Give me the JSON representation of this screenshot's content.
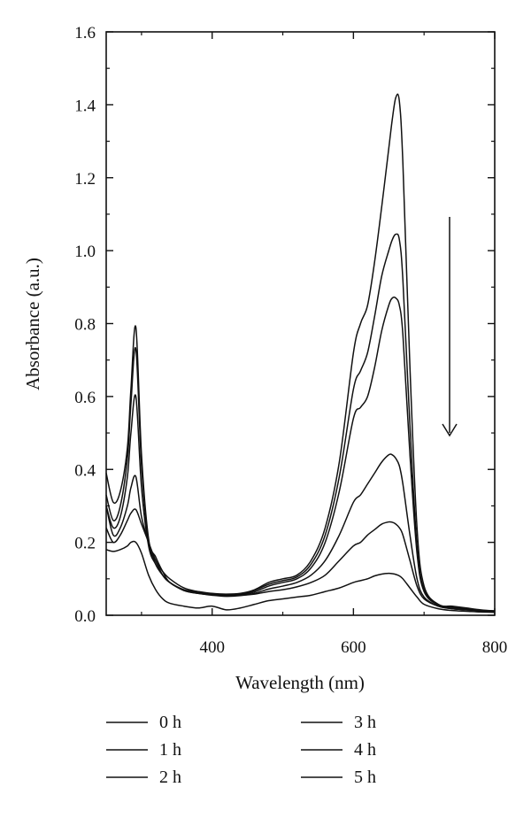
{
  "chart_data": {
    "type": "line",
    "xlabel": "Wavelength (nm)",
    "ylabel": "Absorbance (a.u.)",
    "xlim": [
      250,
      800
    ],
    "ylim": [
      0.0,
      1.6
    ],
    "x_ticks": [
      400,
      600,
      800
    ],
    "x_tick_labels": [
      "400",
      "600",
      "800"
    ],
    "y_ticks": [
      0.0,
      0.2,
      0.4,
      0.6,
      0.8,
      1.0,
      1.2,
      1.4,
      1.6
    ],
    "y_tick_labels": [
      "0.0",
      "0.2",
      "0.4",
      "0.6",
      "0.8",
      "1.0",
      "1.2",
      "1.4",
      "1.6"
    ],
    "grid": false,
    "legend_position": "bottom",
    "annotation": "downward-arrow",
    "x": [
      250,
      260,
      270,
      280,
      285,
      292,
      300,
      310,
      320,
      330,
      340,
      360,
      380,
      400,
      420,
      440,
      460,
      480,
      500,
      520,
      540,
      560,
      580,
      600,
      610,
      620,
      630,
      640,
      650,
      655,
      660,
      665,
      670,
      680,
      690,
      700,
      720,
      740,
      760,
      780,
      800
    ],
    "series": [
      {
        "name": "0 h",
        "values": [
          0.39,
          0.31,
          0.34,
          0.46,
          0.62,
          0.79,
          0.44,
          0.21,
          0.16,
          0.12,
          0.09,
          0.07,
          0.065,
          0.06,
          0.058,
          0.06,
          0.07,
          0.09,
          0.1,
          0.11,
          0.15,
          0.24,
          0.42,
          0.72,
          0.8,
          0.85,
          0.97,
          1.12,
          1.28,
          1.36,
          1.42,
          1.41,
          1.24,
          0.68,
          0.24,
          0.08,
          0.03,
          0.025,
          0.02,
          0.015,
          0.012
        ]
      },
      {
        "name": "1 h",
        "values": [
          0.33,
          0.26,
          0.3,
          0.43,
          0.58,
          0.73,
          0.41,
          0.2,
          0.15,
          0.11,
          0.09,
          0.07,
          0.063,
          0.058,
          0.056,
          0.058,
          0.068,
          0.085,
          0.095,
          0.105,
          0.14,
          0.22,
          0.38,
          0.62,
          0.67,
          0.72,
          0.82,
          0.93,
          1.0,
          1.03,
          1.045,
          1.03,
          0.92,
          0.52,
          0.19,
          0.07,
          0.03,
          0.022,
          0.018,
          0.014,
          0.012
        ]
      },
      {
        "name": "2 h",
        "values": [
          0.3,
          0.24,
          0.27,
          0.38,
          0.5,
          0.6,
          0.35,
          0.19,
          0.14,
          0.11,
          0.09,
          0.068,
          0.06,
          0.056,
          0.054,
          0.056,
          0.064,
          0.08,
          0.09,
          0.1,
          0.13,
          0.2,
          0.34,
          0.54,
          0.57,
          0.6,
          0.68,
          0.78,
          0.85,
          0.87,
          0.87,
          0.85,
          0.77,
          0.44,
          0.17,
          0.065,
          0.028,
          0.02,
          0.017,
          0.013,
          0.011
        ]
      },
      {
        "name": "3 h",
        "values": [
          0.3,
          0.22,
          0.24,
          0.3,
          0.35,
          0.38,
          0.27,
          0.2,
          0.14,
          0.11,
          0.09,
          0.068,
          0.06,
          0.055,
          0.052,
          0.054,
          0.06,
          0.072,
          0.08,
          0.09,
          0.11,
          0.15,
          0.22,
          0.31,
          0.33,
          0.36,
          0.39,
          0.42,
          0.44,
          0.44,
          0.43,
          0.41,
          0.36,
          0.22,
          0.1,
          0.05,
          0.025,
          0.018,
          0.015,
          0.012,
          0.01
        ]
      },
      {
        "name": "4 h",
        "values": [
          0.24,
          0.2,
          0.22,
          0.26,
          0.28,
          0.29,
          0.25,
          0.2,
          0.15,
          0.12,
          0.1,
          0.075,
          0.065,
          0.058,
          0.055,
          0.055,
          0.058,
          0.065,
          0.07,
          0.078,
          0.09,
          0.11,
          0.15,
          0.19,
          0.2,
          0.22,
          0.235,
          0.25,
          0.256,
          0.255,
          0.25,
          0.24,
          0.22,
          0.15,
          0.08,
          0.045,
          0.025,
          0.018,
          0.015,
          0.012,
          0.01
        ]
      },
      {
        "name": "5 h",
        "values": [
          0.18,
          0.175,
          0.18,
          0.19,
          0.2,
          0.2,
          0.17,
          0.11,
          0.07,
          0.045,
          0.033,
          0.025,
          0.02,
          0.025,
          0.015,
          0.02,
          0.03,
          0.04,
          0.045,
          0.05,
          0.055,
          0.065,
          0.075,
          0.09,
          0.095,
          0.1,
          0.108,
          0.113,
          0.115,
          0.114,
          0.112,
          0.108,
          0.1,
          0.075,
          0.05,
          0.03,
          0.018,
          0.013,
          0.011,
          0.009,
          0.008
        ]
      }
    ]
  }
}
